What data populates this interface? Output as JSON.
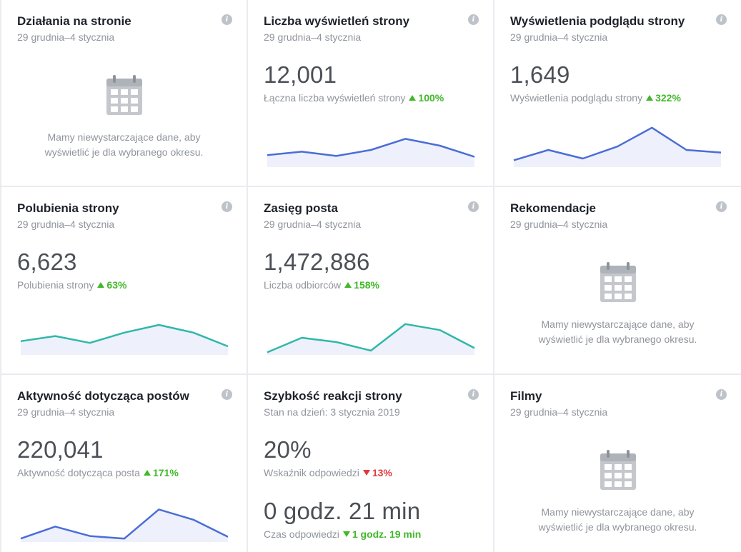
{
  "colors": {
    "up": "#42b72a",
    "down": "#e0393e",
    "blue_line": "#4a6ed6",
    "teal_line": "#2fb8a9",
    "fill": "#eef0fb"
  },
  "cards": {
    "actions": {
      "title": "Działania na stronie",
      "period": "29 grudnia–4 stycznia",
      "empty_line1": "Mamy niewystarczające dane, aby",
      "empty_line2": "wyświetlić je dla wybranego okresu.",
      "icon": "calendar-icon"
    },
    "page_views": {
      "title": "Liczba wyświetleń strony",
      "period": "29 grudnia–4 stycznia",
      "value": "12,001",
      "label": "Łączna liczba wyświetleń strony",
      "change": "100%",
      "trend": "up",
      "spark": [
        14,
        18,
        13,
        20,
        33,
        25,
        12
      ]
    },
    "previews": {
      "title": "Wyświetlenia podglądu strony",
      "period": "29 grudnia–4 stycznia",
      "value": "1,649",
      "label": "Wyświetlenia podglądu strony",
      "change": "322%",
      "trend": "up",
      "spark": [
        8,
        20,
        10,
        24,
        46,
        20,
        17
      ]
    },
    "likes": {
      "title": "Polubienia strony",
      "period": "29 grudnia–4 stycznia",
      "value": "6,623",
      "label": "Polubienia strony",
      "change": "63%",
      "trend": "up",
      "spark": [
        16,
        22,
        14,
        26,
        35,
        26,
        10
      ]
    },
    "reach": {
      "title": "Zasięg posta",
      "period": "29 grudnia–4 stycznia",
      "value": "1,472,886",
      "label": "Liczba odbiorców",
      "change": "158%",
      "trend": "up",
      "spark": [
        3,
        20,
        15,
        5,
        36,
        29,
        8
      ]
    },
    "recommendations": {
      "title": "Rekomendacje",
      "period": "29 grudnia–4 stycznia",
      "empty_line1": "Mamy niewystarczające dane, aby",
      "empty_line2": "wyświetlić je dla wybranego okresu.",
      "icon": "calendar-icon"
    },
    "engagement": {
      "title": "Aktywność dotycząca postów",
      "period": "29 grudnia–4 stycznia",
      "value": "220,041",
      "label": "Aktywność dotycząca posta",
      "change": "171%",
      "trend": "up",
      "spark": [
        4,
        18,
        7,
        4,
        38,
        26,
        6
      ]
    },
    "response": {
      "title": "Szybkość reakcji strony",
      "period": "Stan na dzień: 3 stycznia 2019",
      "value": "20%",
      "label": "Wskaźnik odpowiedzi",
      "change": "13%",
      "trend": "down",
      "time_value": "0 godz. 21 min",
      "time_label": "Czas odpowiedzi",
      "time_change": "1 godz. 19 min",
      "time_trend": "down"
    },
    "videos": {
      "title": "Filmy",
      "period": "29 grudnia–4 stycznia",
      "empty_line1": "Mamy niewystarczające dane, aby",
      "empty_line2": "wyświetlić je dla wybranego okresu.",
      "icon": "calendar-icon"
    }
  },
  "info_glyph": "i"
}
